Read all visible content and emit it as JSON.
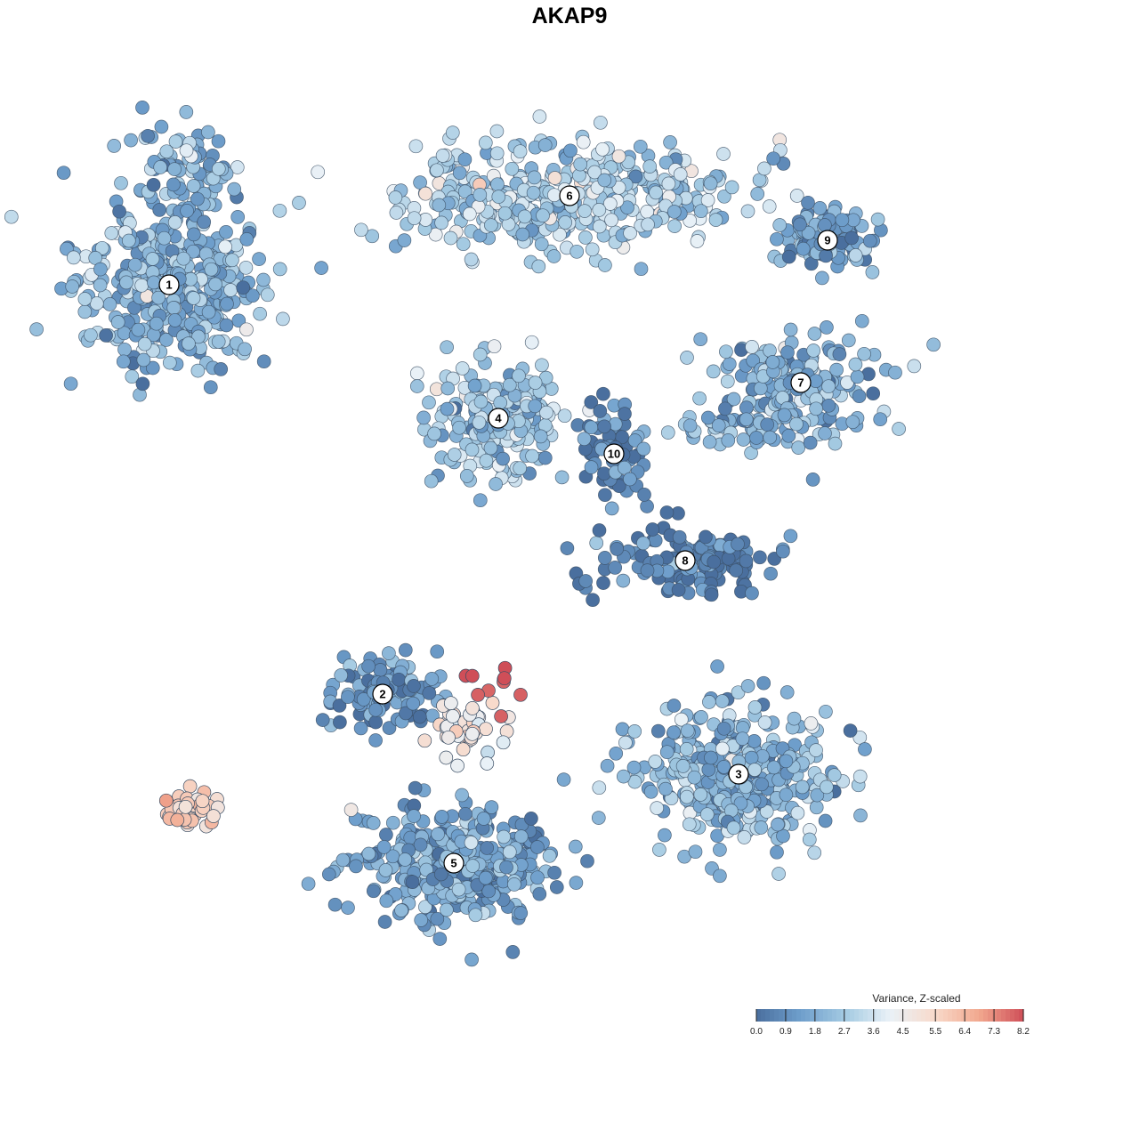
{
  "chart_data": {
    "type": "scatter",
    "title": "AKAP9",
    "colorbar": {
      "title": "Variance, Z-scaled",
      "min": 0.0,
      "max": 8.2,
      "ticks": [
        "0.0",
        "0.9",
        "1.8",
        "2.7",
        "3.6",
        "4.5",
        "5.5",
        "6.4",
        "7.3",
        "8.2"
      ],
      "colors": [
        "#4a6f9e",
        "#6f9fcc",
        "#a4cae2",
        "#e9f1f7",
        "#f8dacb",
        "#f2a98f",
        "#cf4e58"
      ]
    },
    "legend_placement": "bottom-right",
    "grid": false,
    "axes_visible": false,
    "clusters": [
      {
        "label": "1",
        "x": -45,
        "y": 32,
        "mean_value": 2.0
      },
      {
        "label": "2",
        "x": -21,
        "y": -14,
        "mean_value": 0.8
      },
      {
        "label": "3",
        "x": 19,
        "y": -23,
        "mean_value": 2.1
      },
      {
        "label": "4",
        "x": -8,
        "y": 17,
        "mean_value": 2.6
      },
      {
        "label": "5",
        "x": -13,
        "y": -33,
        "mean_value": 1.5
      },
      {
        "label": "6",
        "x": 0,
        "y": 42,
        "mean_value": 2.9
      },
      {
        "label": "7",
        "x": 26,
        "y": 21,
        "mean_value": 1.9
      },
      {
        "label": "8",
        "x": 13,
        "y": 1,
        "mean_value": 0.4
      },
      {
        "label": "9",
        "x": 29,
        "y": 37,
        "mean_value": 1.4
      },
      {
        "label": "10",
        "x": 5,
        "y": 13,
        "mean_value": 0.5
      }
    ],
    "highlights": [
      {
        "region": "cluster-2 center",
        "x": -11,
        "y": -18,
        "value": 4.8
      },
      {
        "region": "cluster-2 peak",
        "x": -8,
        "y": -14,
        "value": 8.0
      },
      {
        "region": "isolated cluster bottom-left",
        "x": -43,
        "y": -27,
        "value": 5.8
      }
    ]
  }
}
